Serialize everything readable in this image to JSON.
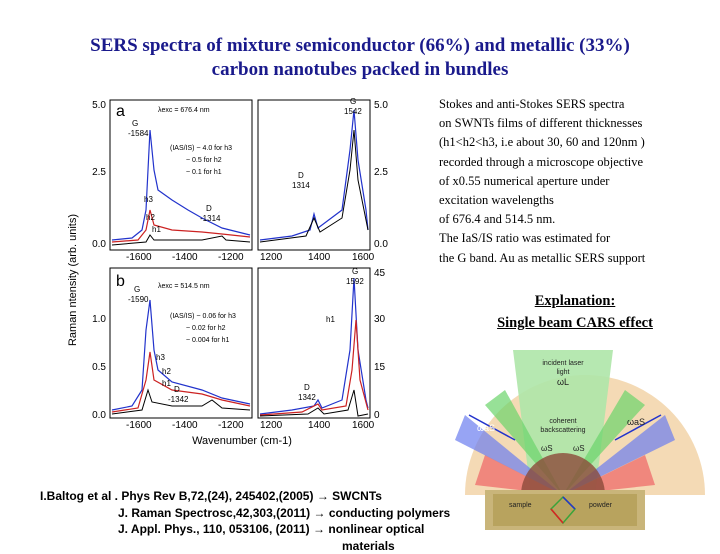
{
  "title": {
    "line1": "SERS spectra of mixture semiconductor (66%) and metallic (33%)",
    "line2": "carbon nanotubes packed in bundles"
  },
  "description": {
    "lines": [
      "Stokes and anti-Stokes SERS spectra",
      "on SWNTs films of  different thicknesses",
      "(h1<h2<h3, i.e about 30, 60 and 120nm )",
      " recorded through a microscope objective",
      " of x0.55 numerical aperture  under",
      "excitation wavelengths",
      "of 676.4 and 514.5 nm.",
      "The IaS/IS ratio was estimated for",
      "the G band. Au as metallic SERS support"
    ]
  },
  "explanation": {
    "heading": "Explanation:",
    "subheading": "Single beam CARS effect"
  },
  "references": [
    {
      "text": "I.Baltog et al . Phys Rev B,72,(24), 245402,(2005)",
      "arrow": "→",
      "topic": "SWCNTs"
    },
    {
      "text": "J. Raman Spectrosc,42,303,(2011)",
      "arrow": "→",
      "topic": "conducting polymers"
    },
    {
      "text": "J. Appl. Phys., 110, 053106, (2011)",
      "arrow": "→",
      "topic": "nonlinear optical"
    },
    {
      "text": "",
      "arrow": "",
      "topic": "materials"
    }
  ],
  "figure": {
    "ylabel": "Raman ntensity (arb. units)",
    "xlabel": "Wavenumber (cm-1)",
    "panel_a": {
      "letter": "a",
      "lambda": "λexc = 676.4 nm",
      "ratio_lines": [
        "(IAS/IS) ~ 4.0 for h3",
        "~ 0.5 for h2",
        "~ 0.1 for h1"
      ],
      "peak_G_left": "G\n-1584",
      "peak_G_right": "G\n1542",
      "peak_D_left": "D\n-1314",
      "peak_D_right": "D\n1314",
      "h_labels": [
        "h3",
        "h2",
        "h1"
      ],
      "y_ticks_left": [
        "5.0",
        "2.5",
        "0.0"
      ],
      "y_ticks_right": [
        "5.0",
        "2.5",
        "0.0"
      ]
    },
    "panel_b": {
      "letter": "b",
      "lambda": "λexc = 514.5 nm",
      "ratio_lines": [
        "(IAS/IS) ~ 0.06 for h3",
        "~ 0.02 for h2",
        "~ 0.004 for h1"
      ],
      "peak_G_left": "G\n-1590",
      "peak_G_right": "G\n1592",
      "peak_D_left": "D\n-1342",
      "peak_D_right": "D\n1342",
      "h_labels": [
        "h3",
        "h2",
        "h1"
      ],
      "y_ticks_left": [
        "1.0",
        "0.5",
        "0.0"
      ],
      "y_ticks_right": [
        "45",
        "30",
        "15",
        "0"
      ]
    },
    "x_ticks_left": [
      "-1600",
      "-1400",
      "-1200"
    ],
    "x_ticks_right": [
      "1200",
      "1400",
      "1600"
    ]
  },
  "cars_diagram": {
    "incident": "incident laser light",
    "omega_L": "ωL",
    "coherent": "coherent backscattering",
    "omega_aS_left": "ωaS",
    "omega_aS_right": "ωaS",
    "omega_S_left": "ωS",
    "omega_S_right": "ωS",
    "sample": "sample",
    "powder": "powder"
  }
}
